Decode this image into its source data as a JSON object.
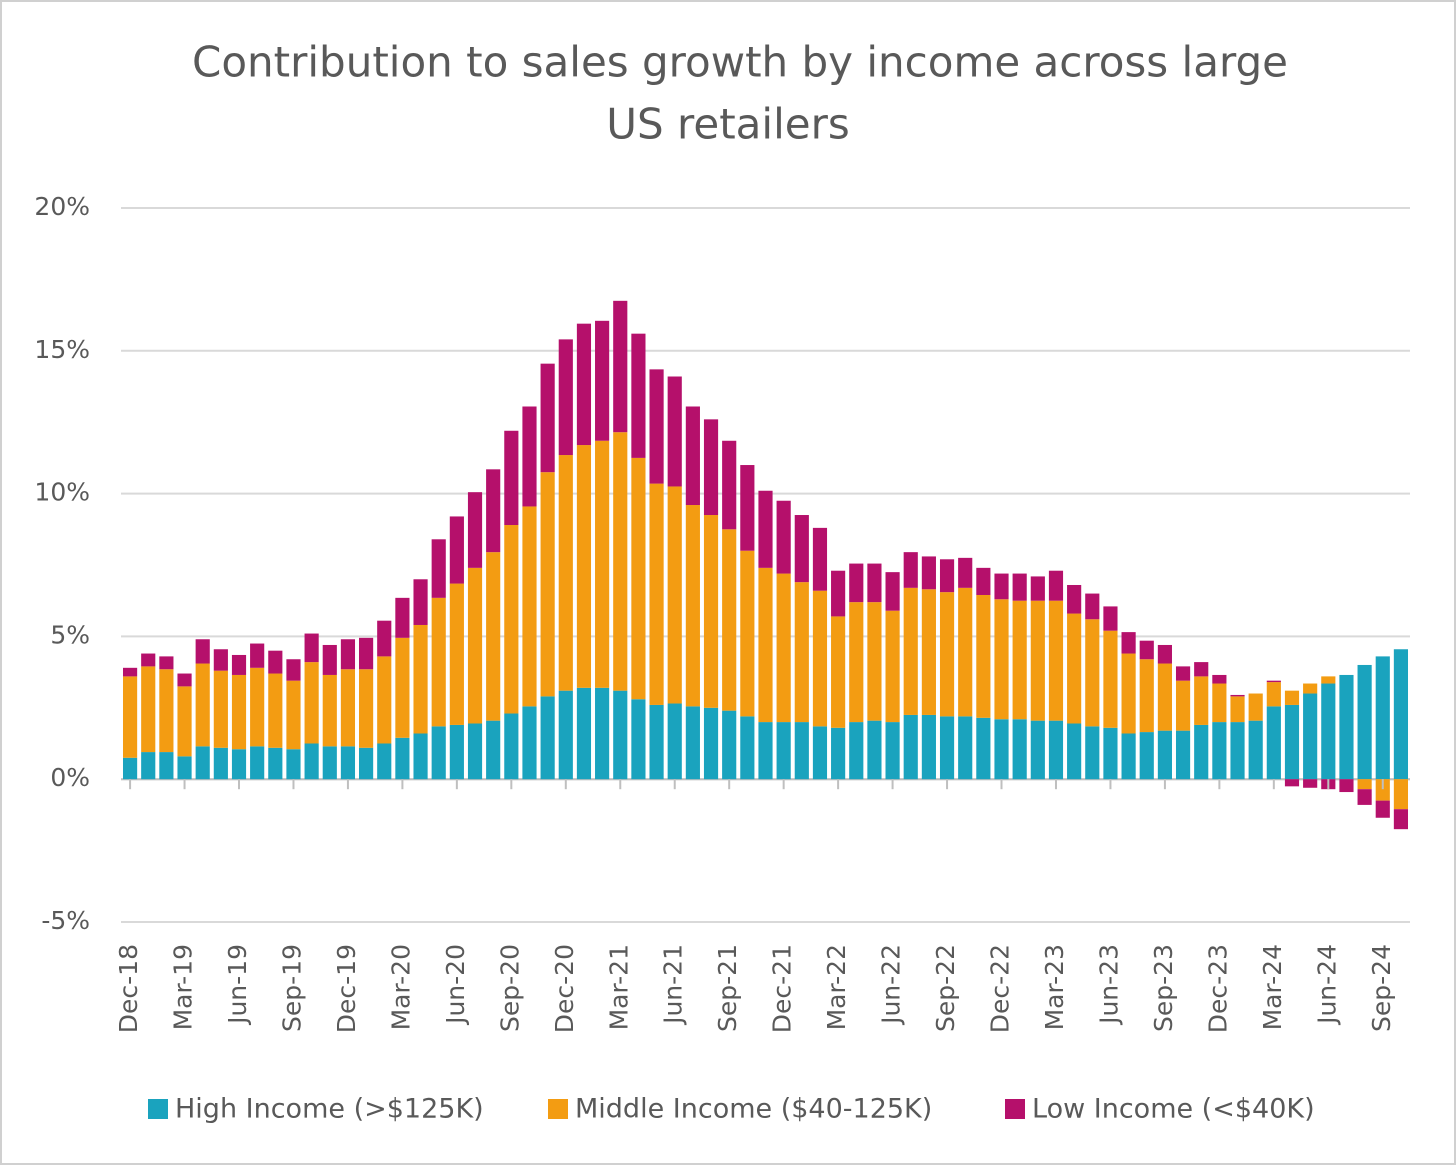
{
  "chart_data": {
    "type": "stacked_bar",
    "title": [
      "Contribution to sales growth by income across large",
      "US retailers"
    ],
    "categories": [
      "Dec-18",
      null,
      null,
      "Mar-19",
      null,
      null,
      "Jun-19",
      null,
      null,
      "Sep-19",
      null,
      null,
      "Dec-19",
      null,
      null,
      "Mar-20",
      null,
      null,
      "Jun-20",
      null,
      null,
      "Sep-20",
      null,
      null,
      "Dec-20",
      null,
      null,
      "Mar-21",
      null,
      null,
      "Jun-21",
      null,
      null,
      "Sep-21",
      null,
      null,
      "Dec-21",
      null,
      null,
      "Mar-22",
      null,
      null,
      "Jun-22",
      null,
      null,
      "Sep-22",
      null,
      null,
      "Dec-22",
      null,
      null,
      "Mar-23",
      null,
      null,
      "Jun-23",
      null,
      null,
      "Sep-23",
      null,
      null,
      "Dec-23",
      null,
      null,
      "Mar-24",
      null,
      null,
      "Jun-24",
      null,
      null,
      "Sep-24",
      null
    ],
    "series": [
      {
        "name": "High Income (>$125K)",
        "color": "#1aa3be",
        "values": [
          0.75,
          0.95,
          0.95,
          0.8,
          1.15,
          1.1,
          1.05,
          1.15,
          1.1,
          1.05,
          1.25,
          1.15,
          1.15,
          1.1,
          1.25,
          1.45,
          1.6,
          1.85,
          1.9,
          1.95,
          2.05,
          2.3,
          2.55,
          2.9,
          3.1,
          3.2,
          3.2,
          3.1,
          2.8,
          2.6,
          2.65,
          2.55,
          2.5,
          2.4,
          2.2,
          2.0,
          2.0,
          2.0,
          1.85,
          1.8,
          2.0,
          2.05,
          2.0,
          2.25,
          2.25,
          2.2,
          2.2,
          2.15,
          2.1,
          2.1,
          2.05,
          2.05,
          1.95,
          1.85,
          1.8,
          1.6,
          1.65,
          1.7,
          1.7,
          1.9,
          2.0,
          2.0,
          2.05,
          2.55,
          2.6,
          3.0,
          3.35,
          3.65,
          4.0,
          4.3,
          4.55
        ]
      },
      {
        "name": "Middle Income ($40-125K)",
        "color": "#f39c12",
        "values": [
          2.85,
          3.0,
          2.9,
          2.45,
          2.9,
          2.7,
          2.6,
          2.75,
          2.6,
          2.4,
          2.85,
          2.5,
          2.7,
          2.75,
          3.05,
          3.5,
          3.8,
          4.5,
          4.95,
          5.45,
          5.9,
          6.6,
          7.0,
          7.85,
          8.25,
          8.5,
          8.65,
          9.05,
          8.45,
          7.75,
          7.6,
          7.05,
          6.75,
          6.35,
          5.8,
          5.4,
          5.2,
          4.9,
          4.75,
          3.9,
          4.2,
          4.15,
          3.9,
          4.45,
          4.4,
          4.35,
          4.5,
          4.3,
          4.2,
          4.15,
          4.2,
          4.2,
          3.85,
          3.75,
          3.4,
          2.8,
          2.55,
          2.35,
          1.75,
          1.7,
          1.35,
          0.9,
          0.95,
          0.85,
          0.5,
          0.35,
          0.25,
          0.0,
          -0.35,
          -0.75,
          -1.05
        ]
      },
      {
        "name": "Low Income (<$40K)",
        "color": "#b5106b",
        "values": [
          0.3,
          0.45,
          0.45,
          0.45,
          0.85,
          0.75,
          0.7,
          0.85,
          0.8,
          0.75,
          1.0,
          1.05,
          1.05,
          1.1,
          1.25,
          1.4,
          1.6,
          2.05,
          2.35,
          2.65,
          2.9,
          3.3,
          3.5,
          3.8,
          4.05,
          4.25,
          4.2,
          4.6,
          4.35,
          4.0,
          3.85,
          3.45,
          3.35,
          3.1,
          3.0,
          2.7,
          2.55,
          2.35,
          2.2,
          1.6,
          1.35,
          1.35,
          1.35,
          1.25,
          1.15,
          1.15,
          1.05,
          0.95,
          0.9,
          0.95,
          0.85,
          1.05,
          1.0,
          0.9,
          0.85,
          0.75,
          0.65,
          0.65,
          0.5,
          0.5,
          0.3,
          0.05,
          0,
          0.05,
          -0.25,
          -0.3,
          -0.35,
          -0.45,
          -0.55,
          -0.6,
          -0.7
        ]
      }
    ],
    "ylim": [
      -5,
      20
    ],
    "yticks": [
      {
        "value": -5,
        "label": "-5%"
      },
      {
        "value": 0,
        "label": "0%"
      },
      {
        "value": 5,
        "label": "5%"
      },
      {
        "value": 10,
        "label": "10%"
      },
      {
        "value": 15,
        "label": "15%"
      },
      {
        "value": 20,
        "label": "20%"
      }
    ],
    "grid": true,
    "legend": "bottom"
  }
}
